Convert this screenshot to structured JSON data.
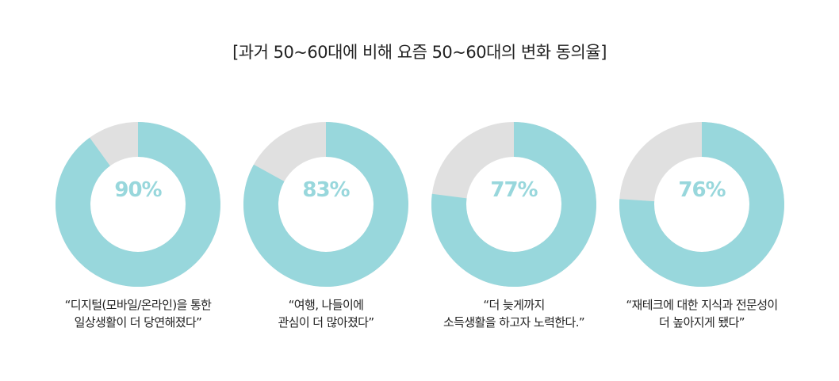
{
  "title": "[과거 50~60대에 비해 요즘 50~60대의 변화 동의율]",
  "colors": {
    "fill": "#98D7DC",
    "rest": "#E0E0E0",
    "label": "#98D7DC"
  },
  "chart_data": [
    {
      "type": "pie",
      "value": 90,
      "label": "90%",
      "caption": [
        "“디지털(모바일/온라인)을 통한",
        "일상생활이 더 당연해졌다”"
      ]
    },
    {
      "type": "pie",
      "value": 83,
      "label": "83%",
      "caption": [
        "“여행, 나들이에",
        "관심이 더 많아졌다”"
      ]
    },
    {
      "type": "pie",
      "value": 77,
      "label": "77%",
      "caption": [
        "“더 늦게까지",
        "소득생활을 하고자 노력한다.”"
      ]
    },
    {
      "type": "pie",
      "value": 76,
      "label": "76%",
      "caption": [
        "“재테크에 대한 지식과 전문성이",
        "더 높아지게 됐다”"
      ]
    }
  ]
}
